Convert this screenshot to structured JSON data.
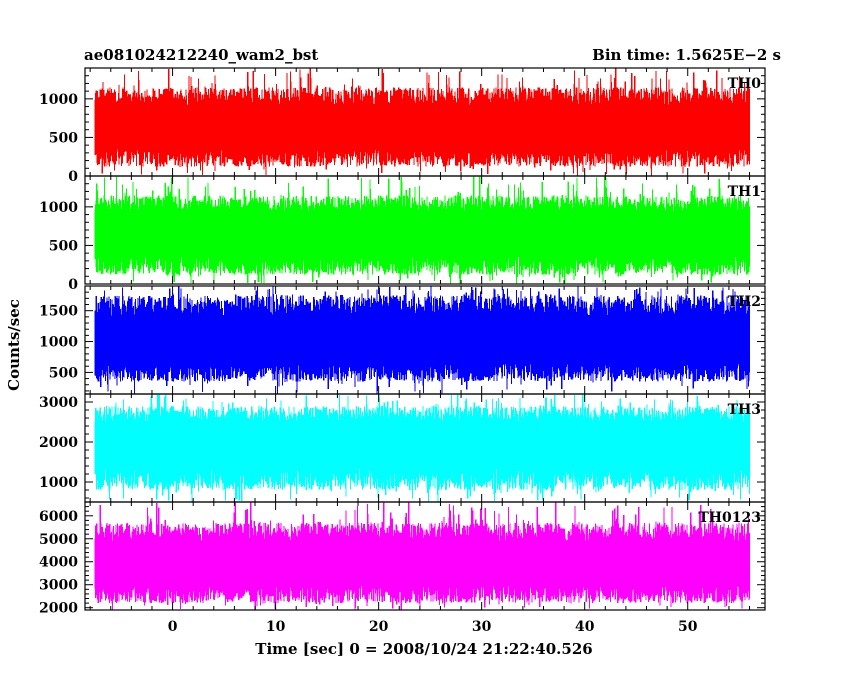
{
  "header": {
    "title": "ae081024212240_wam2_bst",
    "bin_time": "Bin time: 1.5625E−2 s"
  },
  "axes": {
    "ylabel": "Counts/sec",
    "xlabel": "Time [sec] 0 = 2008/10/24 21:22:40.526"
  },
  "chart_data": {
    "type": "line",
    "xlim": [
      -8.5,
      57.5
    ],
    "x_data_range": [
      -7.5,
      56.0
    ],
    "x_ticks": [
      0,
      10,
      20,
      30,
      40,
      50
    ],
    "x_tick_labels": [
      "0",
      "10",
      "20",
      "30",
      "40",
      "50"
    ],
    "shared_x": true,
    "panels": [
      {
        "name": "TH0",
        "color": "#ff0000",
        "ylim": [
          0,
          1400
        ],
        "y_ticks": [
          0,
          500,
          1000
        ],
        "y_tick_labels": [
          "0",
          "500",
          "1000"
        ],
        "mean": 630,
        "typical_min": 120,
        "typical_max": 1150,
        "peak_max": 1400
      },
      {
        "name": "TH1",
        "color": "#00ff00",
        "ylim": [
          0,
          1400
        ],
        "y_ticks": [
          0,
          500,
          1000
        ],
        "y_tick_labels": [
          "0",
          "500",
          "1000"
        ],
        "mean": 650,
        "typical_min": 120,
        "typical_max": 1150,
        "peak_max": 1400
      },
      {
        "name": "TH2",
        "color": "#0000ff",
        "ylim": [
          150,
          1900
        ],
        "y_ticks": [
          500,
          1000,
          1500
        ],
        "y_tick_labels": [
          "500",
          "1000",
          "1500"
        ],
        "mean": 1000,
        "typical_min": 350,
        "typical_max": 1750,
        "peak_max": 1900
      },
      {
        "name": "TH3",
        "color": "#00ffff",
        "ylim": [
          500,
          3200
        ],
        "y_ticks": [
          1000,
          2000,
          3000
        ],
        "y_tick_labels": [
          "1000",
          "2000",
          "3000"
        ],
        "mean": 2000,
        "typical_min": 800,
        "typical_max": 2900,
        "peak_max": 3200
      },
      {
        "name": "TH0123",
        "color": "#ff00ff",
        "ylim": [
          1900,
          6600
        ],
        "y_ticks": [
          2000,
          3000,
          4000,
          5000,
          6000
        ],
        "y_tick_labels": [
          "2000",
          "3000",
          "4000",
          "5000",
          "6000"
        ],
        "mean": 3900,
        "typical_min": 2200,
        "typical_max": 5700,
        "peak_max": 6600
      }
    ]
  }
}
